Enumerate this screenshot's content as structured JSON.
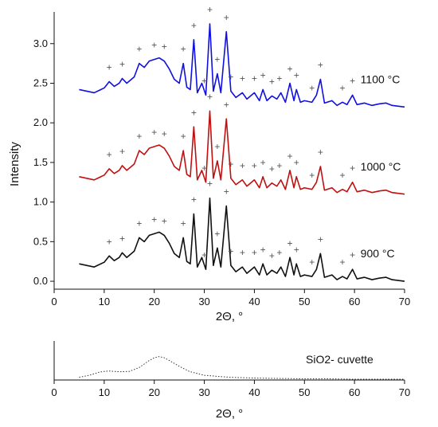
{
  "chart_data": [
    {
      "type": "line",
      "xlabel": "2Θ, °",
      "ylabel": "Intensity",
      "xlim": [
        0,
        70
      ],
      "ylim": [
        -0.1,
        3.4
      ],
      "x_ticks": [
        0,
        10,
        20,
        30,
        40,
        50,
        60,
        70
      ],
      "y_ticks": [
        0.0,
        0.5,
        1.0,
        1.5,
        2.0,
        2.5,
        3.0
      ],
      "grid": false,
      "legend": "none",
      "peak_marker_symbol": "+",
      "series": [
        {
          "name": "1100 °C",
          "color": "#1010e0",
          "offset": 2.2,
          "x": [
            5,
            8,
            10,
            11,
            12,
            13,
            13.6,
            14.5,
            16,
            17,
            18,
            19,
            20,
            21,
            22,
            23,
            24,
            25,
            25.8,
            26.5,
            27.2,
            27.9,
            28.6,
            29.5,
            30.3,
            31.1,
            31.8,
            32.6,
            33.3,
            34.4,
            35.3,
            36.3,
            37.6,
            38.5,
            40,
            41,
            41.7,
            42.5,
            43.5,
            44.5,
            45.3,
            46.2,
            47.1,
            47.9,
            48.4,
            49.2,
            50,
            51.5,
            52.4,
            53.2,
            54,
            55.5,
            56.5,
            57.6,
            58.5,
            59.6,
            60.5,
            62,
            63.5,
            65,
            66.3,
            67.5,
            70
          ],
          "y": [
            0.22,
            0.18,
            0.24,
            0.32,
            0.26,
            0.3,
            0.36,
            0.3,
            0.38,
            0.55,
            0.5,
            0.58,
            0.6,
            0.62,
            0.58,
            0.48,
            0.35,
            0.3,
            0.55,
            0.25,
            0.22,
            0.85,
            0.18,
            0.3,
            0.15,
            1.05,
            0.2,
            0.42,
            0.18,
            0.95,
            0.2,
            0.12,
            0.18,
            0.1,
            0.18,
            0.08,
            0.22,
            0.08,
            0.14,
            0.1,
            0.18,
            0.06,
            0.3,
            0.08,
            0.22,
            0.06,
            0.08,
            0.06,
            0.15,
            0.35,
            0.05,
            0.08,
            0.02,
            0.06,
            0.03,
            0.15,
            0.03,
            0.05,
            0.02,
            0.04,
            0.05,
            0.02,
            0.0
          ],
          "peak_markers_x": [
            11,
            13.6,
            17,
            20,
            22,
            25.8,
            27.9,
            30,
            31.1,
            32.6,
            34.4,
            35.3,
            37.6,
            40,
            41.7,
            43.5,
            45,
            47.1,
            48.4,
            51.5,
            53.2,
            57.6,
            59.6
          ]
        },
        {
          "name": "1000 °C",
          "color": "#c01010",
          "offset": 1.1,
          "x": [
            5,
            8,
            10,
            11,
            12,
            13,
            13.6,
            14.5,
            16,
            17,
            18,
            19,
            20,
            21,
            22,
            23,
            24,
            25,
            25.8,
            26.5,
            27.2,
            27.9,
            28.6,
            29.5,
            30.3,
            31.1,
            31.8,
            32.6,
            33.3,
            34.4,
            35.3,
            36.3,
            37.6,
            38.5,
            40,
            41,
            41.7,
            42.5,
            43.5,
            44.5,
            45.3,
            46.2,
            47.1,
            47.9,
            48.4,
            49.2,
            50,
            51.5,
            52.4,
            53.2,
            54,
            55.5,
            56.5,
            57.6,
            58.5,
            59.6,
            60.5,
            62,
            63.5,
            65,
            66.3,
            67.5,
            70
          ],
          "y": [
            0.22,
            0.18,
            0.24,
            0.32,
            0.26,
            0.3,
            0.36,
            0.3,
            0.38,
            0.55,
            0.5,
            0.58,
            0.6,
            0.62,
            0.58,
            0.48,
            0.35,
            0.3,
            0.55,
            0.25,
            0.22,
            0.85,
            0.18,
            0.3,
            0.15,
            1.05,
            0.2,
            0.42,
            0.18,
            0.95,
            0.2,
            0.12,
            0.18,
            0.1,
            0.18,
            0.08,
            0.22,
            0.08,
            0.14,
            0.1,
            0.18,
            0.06,
            0.3,
            0.08,
            0.22,
            0.06,
            0.08,
            0.06,
            0.15,
            0.35,
            0.05,
            0.08,
            0.02,
            0.06,
            0.03,
            0.15,
            0.03,
            0.05,
            0.02,
            0.04,
            0.05,
            0.02,
            0.0
          ],
          "peak_markers_x": [
            11,
            13.6,
            17,
            20,
            22,
            25.8,
            27.9,
            30,
            31.1,
            32.6,
            34.4,
            35.3,
            37.6,
            40,
            41.7,
            43.5,
            45,
            47.1,
            48.4,
            51.5,
            53.2,
            57.6,
            59.6
          ]
        },
        {
          "name": "900 °C",
          "color": "#101010",
          "offset": 0.0,
          "x": [
            5,
            8,
            10,
            11,
            12,
            13,
            13.6,
            14.5,
            16,
            17,
            18,
            19,
            20,
            21,
            22,
            23,
            24,
            25,
            25.8,
            26.5,
            27.2,
            27.9,
            28.6,
            29.5,
            30.3,
            31.1,
            31.8,
            32.6,
            33.3,
            34.4,
            35.3,
            36.3,
            37.6,
            38.5,
            40,
            41,
            41.7,
            42.5,
            43.5,
            44.5,
            45.3,
            46.2,
            47.1,
            47.9,
            48.4,
            49.2,
            50,
            51.5,
            52.4,
            53.2,
            54,
            55.5,
            56.5,
            57.6,
            58.5,
            59.6,
            60.5,
            62,
            63.5,
            65,
            66.3,
            67.5,
            70
          ],
          "y": [
            0.22,
            0.18,
            0.24,
            0.32,
            0.26,
            0.3,
            0.36,
            0.3,
            0.38,
            0.55,
            0.5,
            0.58,
            0.6,
            0.62,
            0.58,
            0.48,
            0.35,
            0.3,
            0.55,
            0.25,
            0.22,
            0.85,
            0.18,
            0.3,
            0.15,
            1.05,
            0.2,
            0.42,
            0.18,
            0.95,
            0.2,
            0.12,
            0.18,
            0.1,
            0.18,
            0.08,
            0.22,
            0.08,
            0.14,
            0.1,
            0.18,
            0.06,
            0.3,
            0.08,
            0.22,
            0.06,
            0.08,
            0.06,
            0.15,
            0.35,
            0.05,
            0.08,
            0.02,
            0.06,
            0.03,
            0.15,
            0.03,
            0.05,
            0.02,
            0.04,
            0.05,
            0.02,
            0.0
          ],
          "peak_markers_x": [
            11,
            13.6,
            17,
            20,
            22,
            25.8,
            27.9,
            30,
            31.1,
            32.6,
            34.4,
            35.3,
            37.6,
            40,
            41.7,
            43.5,
            45,
            47.1,
            48.4,
            51.5,
            53.2,
            57.6,
            59.6
          ]
        }
      ]
    },
    {
      "type": "line",
      "xlabel": "2Θ, °",
      "ylabel": "",
      "xlim": [
        0,
        70
      ],
      "ylim": [
        0,
        1
      ],
      "x_ticks": [
        0,
        10,
        20,
        30,
        40,
        50,
        60,
        70
      ],
      "grid": false,
      "line_style": "dotted",
      "series": [
        {
          "name": "SiO2- cuvette",
          "color": "#333333",
          "x": [
            5,
            7,
            9,
            10,
            11,
            13,
            15,
            17,
            19,
            20,
            21,
            22,
            23,
            25,
            27,
            30,
            35,
            40,
            45,
            50,
            55,
            60,
            65,
            70
          ],
          "y": [
            0.07,
            0.12,
            0.2,
            0.22,
            0.23,
            0.21,
            0.22,
            0.32,
            0.5,
            0.57,
            0.6,
            0.57,
            0.5,
            0.35,
            0.22,
            0.12,
            0.07,
            0.05,
            0.04,
            0.03,
            0.03,
            0.02,
            0.02,
            0.02
          ]
        }
      ]
    }
  ]
}
